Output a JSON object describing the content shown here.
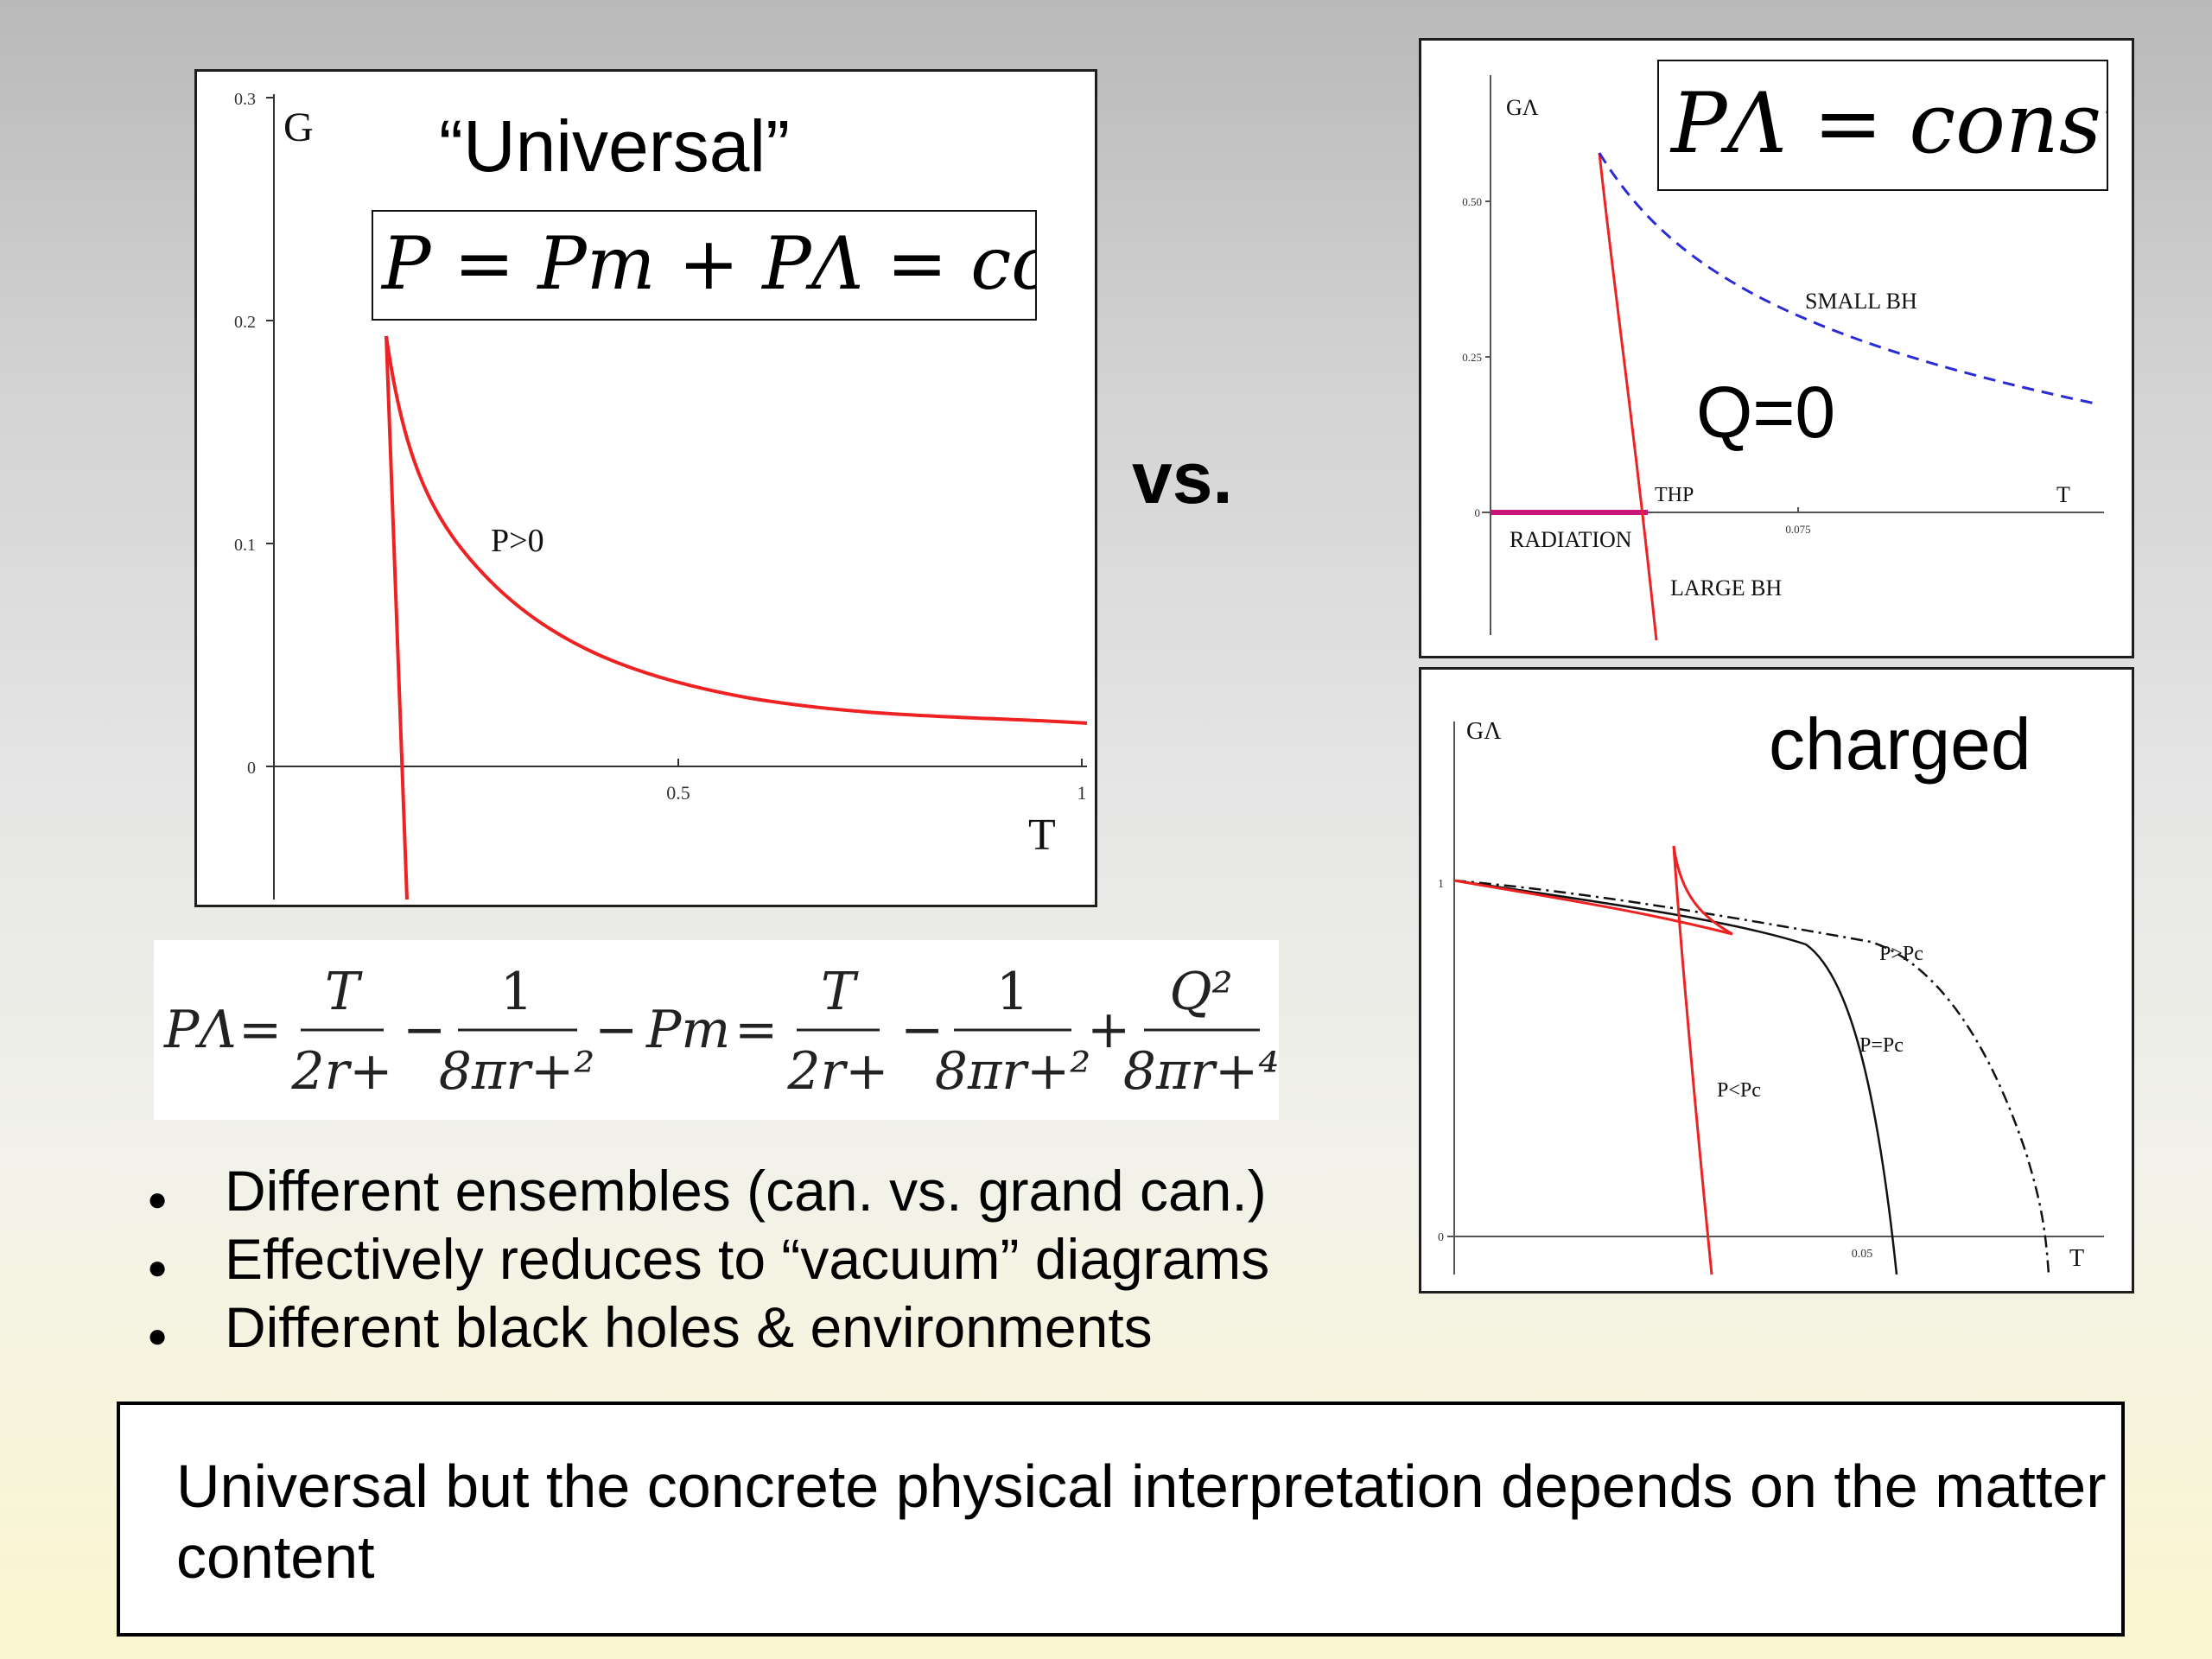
{
  "left_chart": {
    "title": "“Universal”",
    "equation": "P = Pm + PΛ = const.",
    "y_axis_label": "G",
    "x_axis_label": "T",
    "y_ticks": [
      "0.3",
      "0.2",
      "0.1",
      "0"
    ],
    "x_ticks": [
      "0.5",
      "1"
    ],
    "curve_label": "P>0"
  },
  "vs_label": "vs.",
  "top_right_chart": {
    "equation": "PΛ = const",
    "y_axis_label": "GΛ",
    "x_axis_label": "T",
    "y_ticks": [
      "0.50",
      "0.25",
      "0"
    ],
    "x_ticks": [
      "0.075"
    ],
    "q_label": "Q=0",
    "region_labels": {
      "small_bh": "SMALL BH",
      "radiation": "RADIATION",
      "large_bh": "LARGE BH",
      "thp": "THP"
    }
  },
  "bottom_right_chart": {
    "title": "charged",
    "y_axis_label": "GΛ",
    "x_axis_label": "T",
    "y_ticks": [
      "1",
      "0"
    ],
    "x_ticks": [
      "0.05"
    ],
    "series_labels": [
      "P>Pc",
      "P=Pc",
      "P<Pc"
    ]
  },
  "main_equation": {
    "lhs": "PΛ",
    "t1_num": "T",
    "t1_den": "2r+",
    "t2_num": "1",
    "t2_den": "8πr+²",
    "pm": "Pm",
    "t3_num": "T",
    "t3_den": "2r+",
    "t4_num": "1",
    "t4_den": "8πr+²",
    "t5_num": "Q²",
    "t5_den": "8πr+⁴"
  },
  "bullets": [
    "Different ensembles (can. vs. grand can.)",
    "Effectively reduces to “vacuum” diagrams",
    "Different black holes & environments"
  ],
  "conclusion": "Universal but the concrete physical interpretation depends on the matter content",
  "colors": {
    "red_curve": "#ee2222",
    "blue_dashed": "#2b2bd6",
    "magenta_line": "#c8167a",
    "black_curve": "#111111"
  }
}
